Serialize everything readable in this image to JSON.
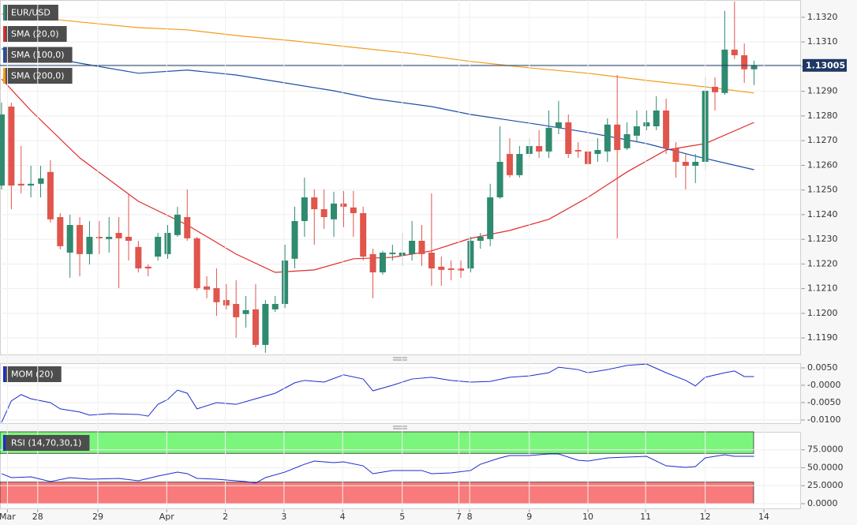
{
  "chart_data": [
    {
      "type": "candlestick",
      "title": "EUR/USD",
      "x": [
        0,
        1,
        2,
        3,
        4,
        5,
        6,
        7,
        8,
        9,
        10,
        11,
        12,
        13,
        14,
        15,
        16,
        17,
        18,
        19,
        20,
        21,
        22,
        23,
        24,
        25,
        26,
        27,
        28,
        29,
        30,
        31,
        32,
        33,
        34,
        35,
        36,
        37,
        38,
        39,
        40,
        41,
        42,
        43,
        44,
        45,
        46,
        47,
        48,
        49,
        50,
        51,
        52,
        53,
        54,
        55,
        56,
        57,
        58,
        59,
        60,
        61,
        62,
        63,
        64,
        65,
        66,
        67,
        68,
        69,
        70,
        71,
        72,
        73,
        74,
        75,
        76,
        77
      ],
      "open": [
        1.12518,
        1.12838,
        1.12525,
        1.12518,
        1.12525,
        1.12573,
        1.1239,
        1.12246,
        1.12358,
        1.1224,
        1.1231,
        1.12301,
        1.12326,
        1.1231,
        1.12269,
        1.12189,
        1.1223,
        1.1224,
        1.12317,
        1.1239,
        1.12304,
        1.12109,
        1.12102,
        1.12054,
        1.12038,
        1.11997,
        1.12016,
        1.11872,
        1.12016,
        1.12038,
        1.12221,
        1.12374,
        1.1247,
        1.12422,
        1.12381,
        1.12445,
        1.12429,
        1.12406,
        1.1224,
        1.12166,
        1.1224,
        1.12234,
        1.1224,
        1.12294,
        1.12246,
        1.12189,
        1.12182,
        1.12182,
        1.12182,
        1.12294,
        1.12301,
        1.1247,
        1.12646,
        1.1256,
        1.12646,
        1.12678,
        1.12656,
        1.12752,
        1.12774,
        1.12662,
        1.12656,
        1.12646,
        1.12656,
        1.12765,
        1.12669,
        1.1272,
        1.12758,
        1.12758,
        1.12822,
        1.12669,
        1.12614,
        1.12598,
        1.12614,
        1.12918,
        1.12893,
        1.13069,
        1.13046,
        1.12989
      ],
      "high": [
        1.12854,
        1.12854,
        1.12678,
        1.12598,
        1.12598,
        1.12621,
        1.12406,
        1.124,
        1.1239,
        1.12374,
        1.12374,
        1.1239,
        1.1239,
        1.12486,
        1.12294,
        1.12198,
        1.12326,
        1.12358,
        1.12432,
        1.12502,
        1.1231,
        1.1215,
        1.12182,
        1.12118,
        1.12134,
        1.1207,
        1.12118,
        1.12054,
        1.1207,
        1.12278,
        1.12432,
        1.1255,
        1.12502,
        1.12502,
        1.12493,
        1.12496,
        1.12496,
        1.12432,
        1.12262,
        1.12253,
        1.12278,
        1.12326,
        1.12374,
        1.12358,
        1.12486,
        1.1223,
        1.12214,
        1.12214,
        1.1231,
        1.12326,
        1.12525,
        1.12758,
        1.1271,
        1.12678,
        1.1271,
        1.12742,
        1.12822,
        1.12861,
        1.12806,
        1.12694,
        1.12694,
        1.1271,
        1.1279,
        1.12966,
        1.12774,
        1.12822,
        1.12822,
        1.1288,
        1.1287,
        1.12694,
        1.12646,
        1.12646,
        1.12957,
        1.12957,
        1.13226,
        1.13264,
        1.13094,
        1.13024
      ],
      "low": [
        1.12502,
        1.12422,
        1.12486,
        1.1247,
        1.1247,
        1.12368,
        1.12259,
        1.12144,
        1.1215,
        1.12198,
        1.1224,
        1.12246,
        1.12102,
        1.12214,
        1.12166,
        1.1215,
        1.12214,
        1.12221,
        1.1231,
        1.12294,
        1.12093,
        1.12061,
        1.1199,
        1.12016,
        1.11901,
        1.11942,
        1.11862,
        1.1184,
        1.12006,
        1.12022,
        1.12182,
        1.1231,
        1.12278,
        1.12342,
        1.1231,
        1.12349,
        1.1231,
        1.12214,
        1.12061,
        1.12157,
        1.12214,
        1.12192,
        1.12214,
        1.12192,
        1.12112,
        1.12112,
        1.12134,
        1.12144,
        1.12166,
        1.12262,
        1.12272,
        1.12464,
        1.1255,
        1.1255,
        1.1263,
        1.1263,
        1.1263,
        1.12726,
        1.1263,
        1.1263,
        1.1256,
        1.12614,
        1.12614,
        1.12304,
        1.12662,
        1.12694,
        1.12742,
        1.12742,
        1.12646,
        1.1255,
        1.12502,
        1.12528,
        1.12582,
        1.12822,
        1.12886,
        1.1303,
        1.12934,
        1.12925
      ],
      "close": [
        1.12806,
        1.12518,
        1.12518,
        1.12525,
        1.12547,
        1.12381,
        1.12272,
        1.12358,
        1.1224,
        1.1231,
        1.12304,
        1.1231,
        1.12304,
        1.12294,
        1.12182,
        1.12182,
        1.1231,
        1.12326,
        1.124,
        1.12304,
        1.12102,
        1.12096,
        1.12045,
        1.12032,
        1.11984,
        1.12013,
        1.11872,
        1.12038,
        1.12038,
        1.12214,
        1.12374,
        1.1247,
        1.12422,
        1.1239,
        1.12445,
        1.12432,
        1.12406,
        1.1223,
        1.12166,
        1.12246,
        1.12246,
        1.12246,
        1.12294,
        1.1224,
        1.12182,
        1.12176,
        1.12176,
        1.12173,
        1.12294,
        1.1231,
        1.1247,
        1.12614,
        1.1256,
        1.12646,
        1.12678,
        1.12656,
        1.12752,
        1.12774,
        1.12646,
        1.12656,
        1.12605,
        1.12662,
        1.12765,
        1.12662,
        1.12726,
        1.12758,
        1.12774,
        1.12822,
        1.12669,
        1.12614,
        1.12598,
        1.12614,
        1.12902,
        1.12896,
        1.13069,
        1.13046,
        1.12989,
        1.13005
      ],
      "up_color": "#2f8a70",
      "down_color": "#e0554c",
      "last_price": 1.13005,
      "last_price_color": "#1f3864",
      "series": [
        {
          "name": "SMA (20,0)",
          "color": "#e02a2a",
          "x": [
            0,
            3,
            8,
            14,
            19,
            24,
            28,
            32,
            36,
            40,
            44,
            48,
            52,
            56,
            60,
            64,
            68,
            72,
            77
          ],
          "values": [
            1.1295,
            1.12822,
            1.1263,
            1.12454,
            1.12358,
            1.1224,
            1.12166,
            1.12176,
            1.12221,
            1.12227,
            1.12253,
            1.12304,
            1.12336,
            1.12381,
            1.1247,
            1.12573,
            1.12662,
            1.12688,
            1.12774
          ]
        },
        {
          "name": "SMA (100,0)",
          "color": "#1f4fa8",
          "x": [
            0,
            8,
            14,
            19,
            24,
            29,
            34,
            38,
            44,
            48,
            55,
            60,
            66,
            71,
            77
          ],
          "values": [
            1.13072,
            1.13014,
            1.12973,
            1.12986,
            1.12966,
            1.12934,
            1.12902,
            1.1287,
            1.12838,
            1.12806,
            1.12765,
            1.12733,
            1.12688,
            1.12637,
            1.12582
          ]
        },
        {
          "name": "SMA (200,0)",
          "color": "#f59a1c",
          "x": [
            0,
            8,
            14,
            19,
            24,
            30,
            36,
            42,
            48,
            54,
            60,
            66,
            72,
            77
          ],
          "values": [
            1.13213,
            1.13181,
            1.13158,
            1.13149,
            1.13126,
            1.13104,
            1.13078,
            1.13053,
            1.13021,
            1.12995,
            1.12973,
            1.12944,
            1.12918,
            1.12893
          ]
        }
      ],
      "xlim": [
        -0.16,
        81.8
      ],
      "ylim": [
        1.1183,
        1.1327
      ],
      "yticks": [
        {
          "value": 1.132,
          "label": "1.1320"
        },
        {
          "value": 1.131,
          "label": "1.1310"
        },
        {
          "value": 1.13,
          "label": "1.1300"
        },
        {
          "value": 1.129,
          "label": "1.1290"
        },
        {
          "value": 1.128,
          "label": "1.1280"
        },
        {
          "value": 1.127,
          "label": "1.1270"
        },
        {
          "value": 1.126,
          "label": "1.1260"
        },
        {
          "value": 1.125,
          "label": "1.1250"
        },
        {
          "value": 1.124,
          "label": "1.1240"
        },
        {
          "value": 1.123,
          "label": "1.1230"
        },
        {
          "value": 1.122,
          "label": "1.1220"
        },
        {
          "value": 1.121,
          "label": "1.1210"
        },
        {
          "value": 1.12,
          "label": "1.1200"
        },
        {
          "value": 1.119,
          "label": "1.1190"
        }
      ],
      "grid": true
    },
    {
      "type": "line",
      "title": "MOM (20)",
      "series": [
        {
          "color": "#1a2ccc",
          "x": [
            0,
            1,
            2,
            3,
            5,
            6,
            8,
            9,
            11,
            14,
            15,
            16,
            17,
            18,
            19,
            20,
            22,
            24,
            26,
            28,
            30,
            31,
            33,
            35,
            37,
            38,
            40,
            42,
            44,
            46,
            48,
            50,
            52,
            54,
            56,
            57,
            59,
            60,
            62,
            64,
            66,
            68,
            70,
            71,
            72,
            74,
            75,
            76,
            77
          ],
          "values": [
            -0.0107,
            -0.0045,
            -0.0027,
            -0.0039,
            -0.005,
            -0.0068,
            -0.0077,
            -0.0086,
            -0.0082,
            -0.0084,
            -0.0089,
            -0.0055,
            -0.0041,
            -0.0014,
            -0.0023,
            -0.0068,
            -0.005,
            -0.0055,
            -0.0039,
            -0.0023,
            0.0007,
            0.0014,
            0.0009,
            0.003,
            0.0018,
            -0.0016,
            0,
            0.0018,
            0.0023,
            0.0014,
            0.0009,
            0.0011,
            0.0023,
            0.0027,
            0.0036,
            0.0052,
            0.0045,
            0.0036,
            0.0045,
            0.0057,
            0.0061,
            0.0036,
            0.0014,
            -0.0002,
            0.0023,
            0.0036,
            0.0041,
            0.0025,
            0.0025
          ]
        }
      ],
      "xlim": [
        -0.16,
        81.8
      ],
      "ylim": [
        -0.01114,
        0.00636
      ],
      "yticks": [
        {
          "value": 0.005,
          "label": "0.0050"
        },
        {
          "value": 0,
          "label": "-0.0000"
        },
        {
          "value": -0.005,
          "label": "-0.0050"
        },
        {
          "value": -0.01,
          "label": "-0.0100"
        }
      ],
      "grid": true
    },
    {
      "type": "line",
      "title": "RSI (14,70,30,1)",
      "series": [
        {
          "color": "#1a2ccc",
          "x": [
            0,
            1,
            3,
            5,
            7,
            9,
            12,
            14,
            16,
            18,
            19,
            20,
            22,
            25,
            26,
            27,
            29,
            31,
            32,
            34,
            35,
            37,
            38,
            40,
            43,
            44,
            46,
            48,
            49,
            51,
            52,
            54,
            56,
            57,
            59,
            60,
            62,
            64,
            66,
            68,
            70,
            71,
            72,
            74,
            75,
            76,
            77
          ],
          "values": [
            41.8,
            36.3,
            37.4,
            30.8,
            36.3,
            34.1,
            35.2,
            31.9,
            38.5,
            44,
            41.8,
            35.2,
            34.1,
            30.8,
            28.6,
            36.3,
            44,
            54.9,
            59.3,
            57.1,
            58.2,
            52.7,
            41.8,
            46.2,
            46.2,
            41.8,
            42.9,
            46.2,
            54.9,
            63.7,
            67,
            67,
            69.2,
            69.2,
            60.4,
            59.3,
            63.7,
            64.8,
            65.9,
            52.7,
            50.5,
            51.6,
            63.7,
            68.1,
            65.9,
            65.9,
            65.9
          ]
        }
      ],
      "bands": [
        {
          "range": [
            70,
            100
          ],
          "color": "#7cf57c"
        },
        {
          "range": [
            0,
            30
          ],
          "color": "#f87a7a"
        }
      ],
      "xlim": [
        -0.16,
        81.8
      ],
      "ylim": [
        -7.7,
        100
      ],
      "yticks": [
        {
          "value": 75,
          "label": "75.0000"
        },
        {
          "value": 50,
          "label": "50.0000"
        },
        {
          "value": 25,
          "label": "25.0000"
        },
        {
          "value": 0,
          "label": "0.0000"
        }
      ],
      "xticks": [
        {
          "value": 0.6,
          "label": "Mar"
        },
        {
          "value": 3.7,
          "label": "28"
        },
        {
          "value": 9.85,
          "label": "29"
        },
        {
          "value": 16.9,
          "label": "Apr"
        },
        {
          "value": 22.9,
          "label": "2"
        },
        {
          "value": 28.9,
          "label": "3"
        },
        {
          "value": 34.9,
          "label": "4"
        },
        {
          "value": 41,
          "label": "5"
        },
        {
          "value": 46.8,
          "label": "7"
        },
        {
          "value": 47.9,
          "label": "8"
        },
        {
          "value": 54,
          "label": "9"
        },
        {
          "value": 60,
          "label": "10"
        },
        {
          "value": 65.9,
          "label": "11"
        },
        {
          "value": 72,
          "label": "12"
        },
        {
          "value": 78,
          "label": "14"
        }
      ],
      "grid": true
    }
  ]
}
